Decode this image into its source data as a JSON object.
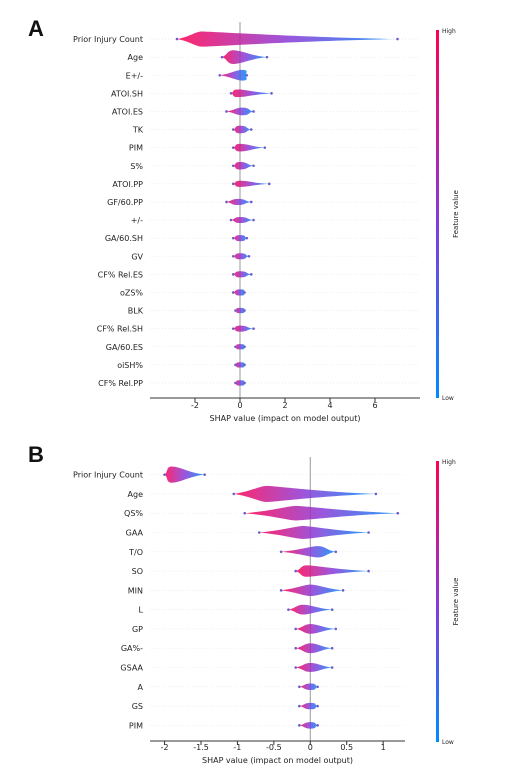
{
  "chart_data": [
    {
      "panel": "A",
      "type": "scatter",
      "xlabel": "SHAP value (impact on model output)",
      "xlim": [
        -4,
        8
      ],
      "xticks": [
        -2,
        0,
        2,
        4,
        6
      ],
      "colorbar": {
        "title": "Feature value",
        "high": "High",
        "low": "Low",
        "high_color": "#ff0052",
        "low_color": "#008bfb"
      },
      "features": [
        {
          "name": "Prior Injury Count",
          "min": -2.8,
          "max": 7.0,
          "mode": -1.7,
          "width": 1.0
        },
        {
          "name": "Age",
          "min": -0.8,
          "max": 1.2,
          "mode": -0.3,
          "width": 0.9
        },
        {
          "name": "E+/-",
          "min": -0.9,
          "max": 0.3,
          "mode": 0.1,
          "width": 0.7
        },
        {
          "name": "ATOI.SH",
          "min": -0.4,
          "max": 1.4,
          "mode": -0.1,
          "width": 0.5
        },
        {
          "name": "ATOI.ES",
          "min": -0.6,
          "max": 0.6,
          "mode": 0.1,
          "width": 0.5
        },
        {
          "name": "TK",
          "min": -0.3,
          "max": 0.5,
          "mode": 0.0,
          "width": 0.5
        },
        {
          "name": "PIM",
          "min": -0.3,
          "max": 1.1,
          "mode": 0.0,
          "width": 0.5
        },
        {
          "name": "S%",
          "min": -0.3,
          "max": 0.6,
          "mode": 0.0,
          "width": 0.5
        },
        {
          "name": "ATOI.PP",
          "min": -0.3,
          "max": 1.3,
          "mode": 0.0,
          "width": 0.4
        },
        {
          "name": "GF/60.PP",
          "min": -0.6,
          "max": 0.5,
          "mode": -0.1,
          "width": 0.4
        },
        {
          "name": "+/-",
          "min": -0.4,
          "max": 0.6,
          "mode": 0.0,
          "width": 0.4
        },
        {
          "name": "GA/60.SH",
          "min": -0.3,
          "max": 0.3,
          "mode": 0.0,
          "width": 0.4
        },
        {
          "name": "GV",
          "min": -0.3,
          "max": 0.4,
          "mode": 0.0,
          "width": 0.4
        },
        {
          "name": "CF% Rel.ES",
          "min": -0.3,
          "max": 0.5,
          "mode": 0.0,
          "width": 0.4
        },
        {
          "name": "oZS%",
          "min": -0.3,
          "max": 0.2,
          "mode": 0.0,
          "width": 0.4
        },
        {
          "name": "BLK",
          "min": -0.2,
          "max": 0.2,
          "mode": 0.0,
          "width": 0.35
        },
        {
          "name": "CF% Rel.SH",
          "min": -0.3,
          "max": 0.6,
          "mode": 0.0,
          "width": 0.4
        },
        {
          "name": "GA/60.ES",
          "min": -0.2,
          "max": 0.2,
          "mode": 0.0,
          "width": 0.35
        },
        {
          "name": "oiSH%",
          "min": -0.2,
          "max": 0.2,
          "mode": 0.0,
          "width": 0.35
        },
        {
          "name": "CF% Rel.PP",
          "min": -0.2,
          "max": 0.2,
          "mode": 0.0,
          "width": 0.35
        }
      ]
    },
    {
      "panel": "B",
      "type": "scatter",
      "xlabel": "SHAP value (impact on model output)",
      "xlim": [
        -2.2,
        1.3
      ],
      "xticks": [
        -2.0,
        -1.5,
        -1.0,
        -0.5,
        0.0,
        0.5,
        1.0
      ],
      "colorbar": {
        "title": "Feature value",
        "high": "High",
        "low": "Low",
        "high_color": "#ff0052",
        "low_color": "#008bfb"
      },
      "features": [
        {
          "name": "Prior Injury Count",
          "min": -2.0,
          "max": -1.45,
          "mode": -1.9,
          "width": 1.0
        },
        {
          "name": "Age",
          "min": -1.05,
          "max": 0.9,
          "mode": -0.6,
          "width": 1.0
        },
        {
          "name": "QS%",
          "min": -0.9,
          "max": 1.2,
          "mode": -0.2,
          "width": 0.9
        },
        {
          "name": "GAA",
          "min": -0.7,
          "max": 0.8,
          "mode": -0.1,
          "width": 0.8
        },
        {
          "name": "T/O",
          "min": -0.4,
          "max": 0.35,
          "mode": 0.1,
          "width": 0.7
        },
        {
          "name": "SO",
          "min": -0.2,
          "max": 0.8,
          "mode": -0.05,
          "width": 0.7
        },
        {
          "name": "MIN",
          "min": -0.4,
          "max": 0.45,
          "mode": 0.0,
          "width": 0.7
        },
        {
          "name": "L",
          "min": -0.3,
          "max": 0.3,
          "mode": -0.1,
          "width": 0.6
        },
        {
          "name": "GP",
          "min": -0.2,
          "max": 0.35,
          "mode": 0.0,
          "width": 0.6
        },
        {
          "name": "GA%-",
          "min": -0.2,
          "max": 0.3,
          "mode": 0.0,
          "width": 0.6
        },
        {
          "name": "GSAA",
          "min": -0.2,
          "max": 0.3,
          "mode": 0.0,
          "width": 0.55
        },
        {
          "name": "A",
          "min": -0.15,
          "max": 0.1,
          "mode": 0.0,
          "width": 0.4
        },
        {
          "name": "GS",
          "min": -0.15,
          "max": 0.1,
          "mode": 0.0,
          "width": 0.4
        },
        {
          "name": "PIM",
          "min": -0.15,
          "max": 0.1,
          "mode": 0.0,
          "width": 0.4
        }
      ]
    }
  ]
}
